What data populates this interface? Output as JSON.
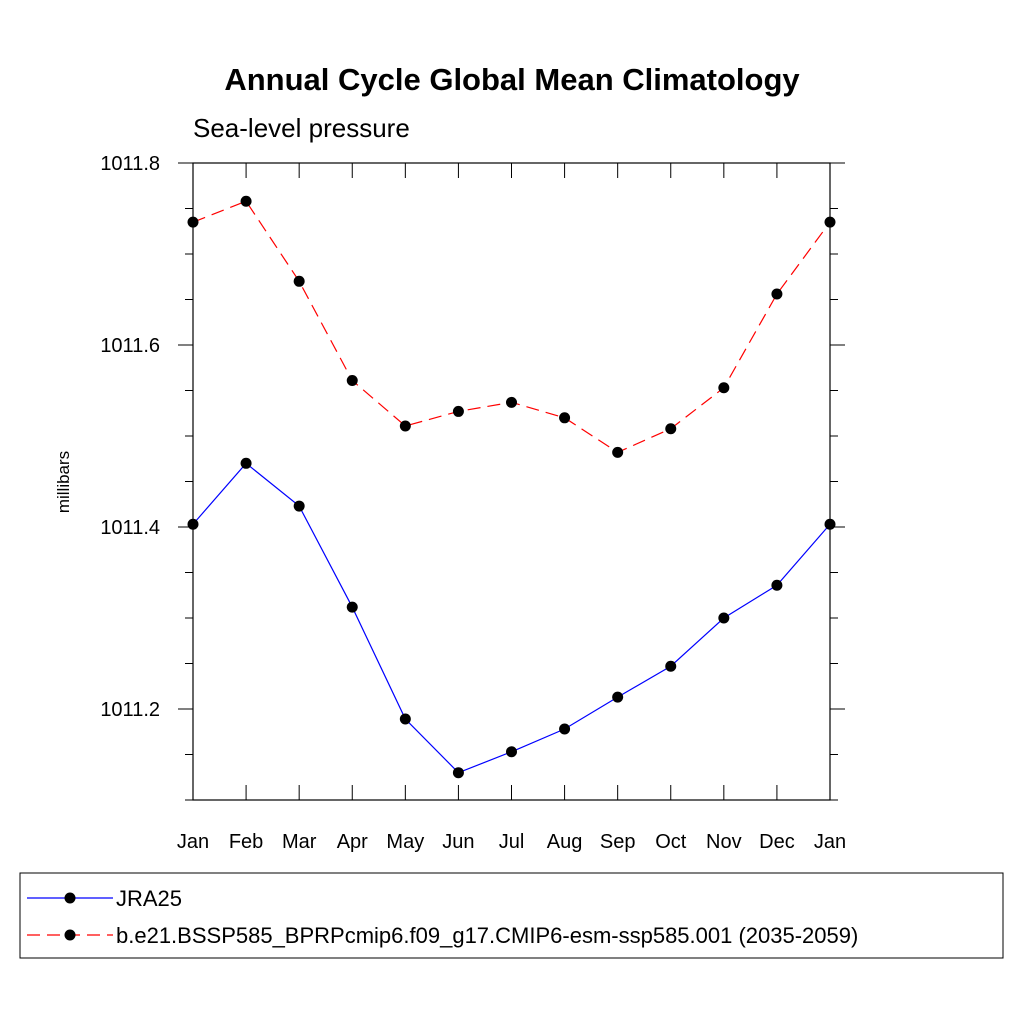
{
  "chart_data": {
    "type": "line",
    "title": "Annual Cycle Global Mean Climatology",
    "subtitle": "Sea-level pressure",
    "xlabel": "",
    "ylabel": "millibars",
    "categories": [
      "Jan",
      "Feb",
      "Mar",
      "Apr",
      "May",
      "Jun",
      "Jul",
      "Aug",
      "Sep",
      "Oct",
      "Nov",
      "Dec",
      "Jan"
    ],
    "ylim": [
      1011.1,
      1011.8
    ],
    "yticks": [
      "1011.2",
      "1011.4",
      "1011.6",
      "1011.8"
    ],
    "ytick_values": [
      1011.2,
      1011.4,
      1011.6,
      1011.8
    ],
    "grid": false,
    "legend_position": "bottom",
    "series": [
      {
        "name": "JRA25",
        "color": "#0000ff",
        "dash": "solid",
        "values": [
          1011.403,
          1011.47,
          1011.423,
          1011.312,
          1011.189,
          1011.13,
          1011.153,
          1011.178,
          1011.213,
          1011.247,
          1011.3,
          1011.336,
          1011.403
        ]
      },
      {
        "name": "b.e21.BSSP585_BPRPcmip6.f09_g17.CMIP6-esm-ssp585.001 (2035-2059)",
        "color": "#ff0000",
        "dash": "dashed",
        "values": [
          1011.735,
          1011.758,
          1011.67,
          1011.561,
          1011.511,
          1011.527,
          1011.537,
          1011.52,
          1011.482,
          1011.508,
          1011.553,
          1011.656,
          1011.735
        ]
      }
    ]
  }
}
